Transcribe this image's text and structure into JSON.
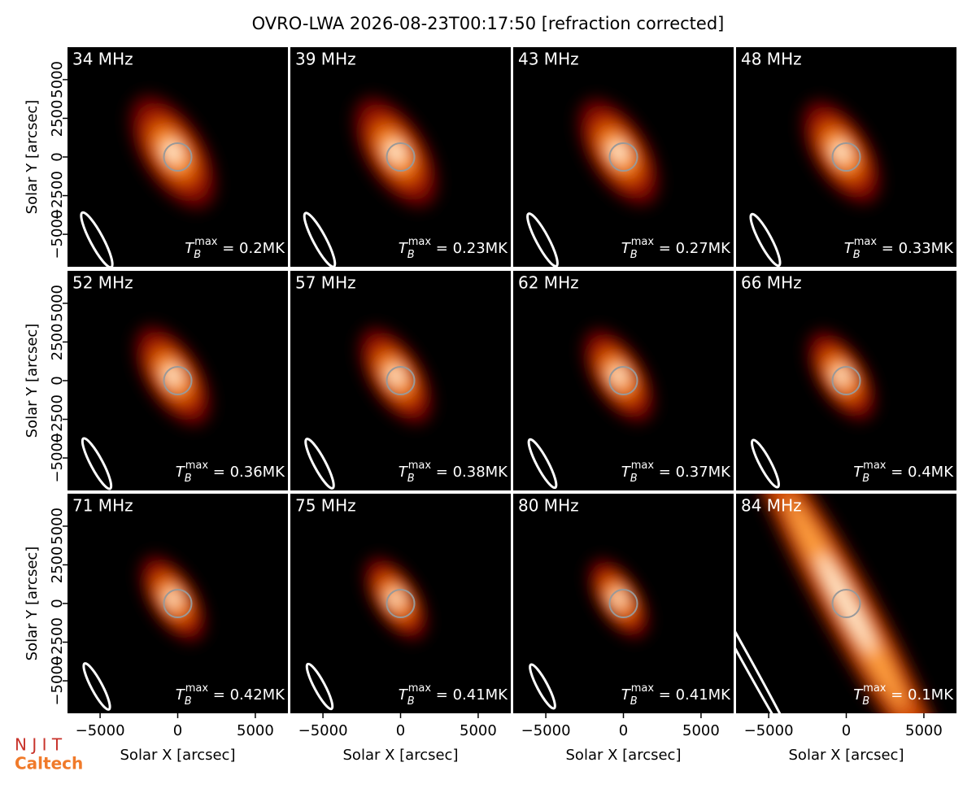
{
  "chart_data": {
    "type": "image-grid",
    "title": "OVRO-LWA 2026-08-23T00:17:50 [refraction corrected]",
    "xlabel": "Solar X [arcsec]",
    "ylabel": "Solar Y [arcsec]",
    "xlim": [
      -7100,
      7100
    ],
    "ylim": [
      -7100,
      7100
    ],
    "xticks": [
      {
        "value": -5000,
        "label": "−5000"
      },
      0,
      5000
    ],
    "yticks": [
      {
        "value": -5000,
        "label": "−5000"
      },
      {
        "value": -2500,
        "label": "−2500"
      },
      0,
      2500,
      5000
    ],
    "tb_symbol": {
      "base": "T",
      "sub": "B",
      "sup": "max",
      "eq": " = "
    },
    "panels": [
      {
        "freq": "34 MHz",
        "tb_max": "0.2MK"
      },
      {
        "freq": "39 MHz",
        "tb_max": "0.23MK"
      },
      {
        "freq": "43 MHz",
        "tb_max": "0.27MK"
      },
      {
        "freq": "48 MHz",
        "tb_max": "0.33MK"
      },
      {
        "freq": "52 MHz",
        "tb_max": "0.36MK"
      },
      {
        "freq": "57 MHz",
        "tb_max": "0.38MK"
      },
      {
        "freq": "62 MHz",
        "tb_max": "0.37MK"
      },
      {
        "freq": "66 MHz",
        "tb_max": "0.4MK"
      },
      {
        "freq": "71 MHz",
        "tb_max": "0.42MK"
      },
      {
        "freq": "75 MHz",
        "tb_max": "0.41MK"
      },
      {
        "freq": "80 MHz",
        "tb_max": "0.41MK"
      },
      {
        "freq": "84 MHz",
        "tb_max": "0.1MK"
      }
    ],
    "logos": [
      "N J I T",
      "Caltech"
    ]
  }
}
